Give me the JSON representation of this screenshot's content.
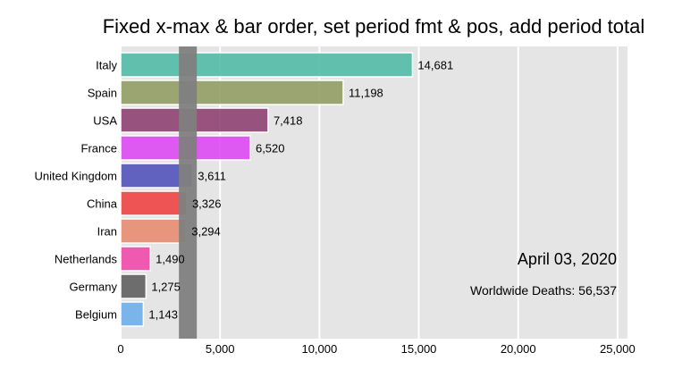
{
  "chart_data": {
    "type": "bar",
    "orientation": "horizontal",
    "title": "Fixed x-max & bar order, set period fmt & pos, add period total",
    "categories": [
      "Italy",
      "Spain",
      "USA",
      "France",
      "United Kingdom",
      "China",
      "Iran",
      "Netherlands",
      "Germany",
      "Belgium"
    ],
    "values": [
      14681,
      11198,
      7418,
      6520,
      3611,
      3326,
      3294,
      1490,
      1275,
      1143
    ],
    "value_labels": [
      "14,681",
      "11,198",
      "7,418",
      "6,520",
      "3,611",
      "3,326",
      "3,294",
      "1,490",
      "1,275",
      "1,143"
    ],
    "colors": [
      "#4fb9a6",
      "#8f9c62",
      "#8c3f6e",
      "#dd45f2",
      "#4f4fba",
      "#ef4040",
      "#e78a6e",
      "#f045a8",
      "#5c5c5c",
      "#6aaeea"
    ],
    "xlim": [
      0,
      25500
    ],
    "xticks": [
      0,
      5000,
      10000,
      15000,
      20000,
      25000
    ],
    "xtick_labels": [
      "0",
      "5,000",
      "10,000",
      "15,000",
      "20,000",
      "25,000"
    ],
    "grid": true,
    "reference_band": {
      "from": 2930,
      "to": 3830,
      "color": "#808080"
    },
    "period_label": "April 03, 2020",
    "period_total": "Worldwide Deaths: 56,537"
  }
}
